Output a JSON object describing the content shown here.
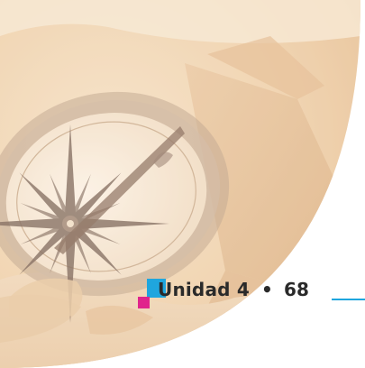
{
  "footer": {
    "unit_label": "Unidad 4",
    "separator": "•",
    "page_number": "68"
  },
  "colors": {
    "accent_cyan": "#1fa6de",
    "accent_magenta": "#e0258c",
    "text": "#2a2a2a"
  }
}
